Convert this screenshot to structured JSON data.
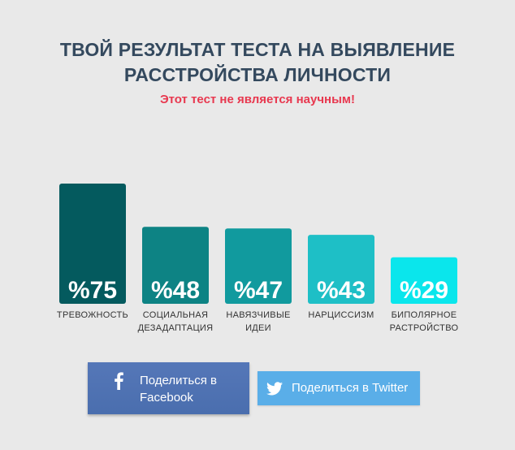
{
  "header": {
    "title_line1": "ТВОЙ РЕЗУЛЬТАТ ТЕСТА НА ВЫЯВЛЕНИЕ",
    "title_line2": "РАССТРОЙСТВА ЛИЧНОСТИ",
    "subtitle": "Этот тест не является научным!"
  },
  "colors": {
    "title": "#34495e",
    "subtitle": "#e8384f",
    "bar_label": "#333333",
    "value_text": "#ffffff"
  },
  "chart_data": {
    "type": "bar",
    "categories": [
      [
        "ТРЕВОЖНОСТЬ"
      ],
      [
        "СОЦИАЛЬНАЯ",
        "ДЕЗАДАПТАЦИЯ"
      ],
      [
        "НАВЯЗЧИВЫЕ",
        "ИДЕИ"
      ],
      [
        "НАРЦИССИЗМ"
      ],
      [
        "БИПОЛЯРНОЕ",
        "РАСТРОЙСТВО"
      ]
    ],
    "values": [
      75,
      48,
      47,
      43,
      29
    ],
    "value_labels": [
      "%75",
      "%48",
      "%47",
      "%43",
      "%29"
    ],
    "bar_colors": [
      "#045a5e",
      "#0d8384",
      "#119a9e",
      "#1ebfc6",
      "#0ae6ec"
    ],
    "ylim": [
      0,
      75
    ],
    "grid": false,
    "legend": "none"
  },
  "share": {
    "facebook_line1": "Поделиться в",
    "facebook_line2": "Facebook",
    "facebook_icon": "facebook-icon",
    "twitter_label": "Поделиться в Twitter",
    "twitter_icon": "twitter-icon"
  }
}
